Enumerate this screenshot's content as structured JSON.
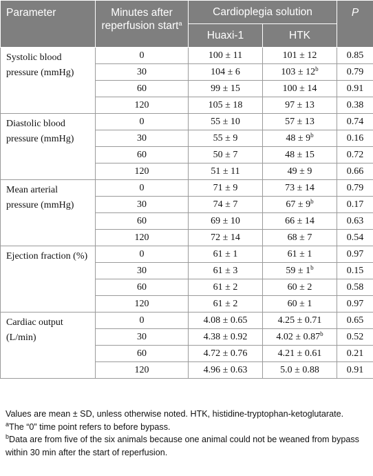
{
  "header": {
    "parameter": "Parameter",
    "minutes": "Minutes after reperfusion start",
    "minutes_sup": "a",
    "group": "Cardioplegia solution",
    "col_a": "Huaxi-1",
    "col_b": "HTK",
    "p": "P"
  },
  "groups": [
    {
      "name": "Systolic blood pressure (mmHg)",
      "rows": [
        {
          "min": "0",
          "a": "100 ± 11",
          "b": "101 ± 12",
          "b_sup": "",
          "p": "0.85"
        },
        {
          "min": "30",
          "a": "104 ± 6",
          "b": "103 ± 12",
          "b_sup": "b",
          "p": "0.79"
        },
        {
          "min": "60",
          "a": "99 ± 15",
          "b": "100 ± 14",
          "b_sup": "",
          "p": "0.91"
        },
        {
          "min": "120",
          "a": "105 ± 18",
          "b": "97 ± 13",
          "b_sup": "",
          "p": "0.38"
        }
      ]
    },
    {
      "name": "Diastolic blood pressure (mmHg)",
      "rows": [
        {
          "min": "0",
          "a": "55 ± 10",
          "b": "57 ± 13",
          "b_sup": "",
          "p": "0.74"
        },
        {
          "min": "30",
          "a": "55 ± 9",
          "b": "48 ± 9",
          "b_sup": "b",
          "p": "0.16"
        },
        {
          "min": "60",
          "a": "50 ± 7",
          "b": "48 ± 15",
          "b_sup": "",
          "p": "0.72"
        },
        {
          "min": "120",
          "a": "51 ± 11",
          "b": "49 ± 9",
          "b_sup": "",
          "p": "0.66"
        }
      ]
    },
    {
      "name": "Mean arterial pressure (mmHg)",
      "rows": [
        {
          "min": "0",
          "a": "71 ± 9",
          "b": "73 ± 14",
          "b_sup": "",
          "p": "0.79"
        },
        {
          "min": "30",
          "a": "74 ± 7",
          "b": "67 ± 9",
          "b_sup": "b",
          "p": "0.17"
        },
        {
          "min": "60",
          "a": "69 ± 10",
          "b": "66 ± 14",
          "b_sup": "",
          "p": "0.63"
        },
        {
          "min": "120",
          "a": "72 ± 14",
          "b": "68 ± 7",
          "b_sup": "",
          "p": "0.54"
        }
      ]
    },
    {
      "name": "Ejection fraction (%)",
      "rows": [
        {
          "min": "0",
          "a": "61 ± 1",
          "b": "61 ± 1",
          "b_sup": "",
          "p": "0.97"
        },
        {
          "min": "30",
          "a": "61 ± 3",
          "b": "59 ± 1",
          "b_sup": "b",
          "p": "0.15"
        },
        {
          "min": "60",
          "a": "61 ± 2",
          "b": "60 ± 2",
          "b_sup": "",
          "p": "0.58"
        },
        {
          "min": "120",
          "a": "61 ± 2",
          "b": "60 ± 1",
          "b_sup": "",
          "p": "0.97"
        }
      ]
    },
    {
      "name": "Cardiac output (L/min)",
      "rows": [
        {
          "min": "0",
          "a": "4.08 ± 0.65",
          "b": "4.25 ± 0.71",
          "b_sup": "",
          "p": "0.65"
        },
        {
          "min": "30",
          "a": "4.38 ± 0.92",
          "b": "4.02 ± 0.87",
          "b_sup": "b",
          "p": "0.52"
        },
        {
          "min": "60",
          "a": "4.72 ± 0.76",
          "b": "4.21 ± 0.61",
          "b_sup": "",
          "p": "0.21"
        },
        {
          "min": "120",
          "a": "4.96 ± 0.63",
          "b": "5.0 ± 0.88",
          "b_sup": "",
          "p": "0.91"
        }
      ]
    }
  ],
  "footnotes": {
    "main": "Values are mean ± SD, unless otherwise noted. HTK, histidine-tryptophan-ketoglutarate.",
    "a_mark": "a",
    "a_text": "The “0” time point refers to before bypass.",
    "b_mark": "b",
    "b_text": "Data are from five of the six animals because one animal could not be weaned from bypass within 30 min after the start of reperfusion."
  }
}
